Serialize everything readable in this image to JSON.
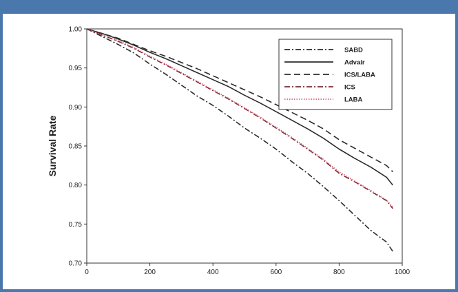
{
  "chart_data": {
    "type": "line",
    "title": "",
    "xlabel": "",
    "ylabel": "Survival Rate",
    "xlim": [
      0,
      1000
    ],
    "ylim": [
      0.7,
      1.0
    ],
    "x_ticks": [
      "0",
      "200",
      "400",
      "600",
      "800",
      "1000"
    ],
    "y_ticks": [
      "0.70",
      "0.75",
      "0.80",
      "0.85",
      "0.90",
      "0.95",
      "1.00"
    ],
    "grid": false,
    "legend_position": "top-right",
    "series": [
      {
        "name": "SABD",
        "style": "dash-dot",
        "color": "#2b2b2b",
        "x": [
          0,
          50,
          100,
          150,
          200,
          250,
          300,
          350,
          400,
          450,
          500,
          550,
          600,
          650,
          700,
          750,
          800,
          850,
          900,
          950,
          970
        ],
        "values": [
          1.0,
          0.99,
          0.98,
          0.969,
          0.955,
          0.942,
          0.928,
          0.914,
          0.902,
          0.888,
          0.873,
          0.86,
          0.846,
          0.83,
          0.815,
          0.798,
          0.78,
          0.761,
          0.742,
          0.727,
          0.715
        ]
      },
      {
        "name": "Advair",
        "style": "solid",
        "color": "#2b2b2b",
        "x": [
          0,
          50,
          100,
          150,
          200,
          250,
          300,
          350,
          400,
          450,
          500,
          550,
          600,
          650,
          700,
          750,
          800,
          850,
          900,
          950,
          970
        ],
        "values": [
          1.0,
          0.994,
          0.987,
          0.979,
          0.97,
          0.962,
          0.953,
          0.944,
          0.935,
          0.926,
          0.915,
          0.905,
          0.894,
          0.883,
          0.872,
          0.86,
          0.846,
          0.834,
          0.823,
          0.81,
          0.8
        ]
      },
      {
        "name": "ICS/LABA",
        "style": "dash",
        "color": "#2b2b2b",
        "x": [
          0,
          50,
          100,
          150,
          200,
          250,
          300,
          350,
          400,
          450,
          500,
          550,
          600,
          650,
          700,
          750,
          800,
          850,
          900,
          950,
          970
        ],
        "values": [
          1.0,
          0.994,
          0.988,
          0.98,
          0.972,
          0.965,
          0.957,
          0.949,
          0.94,
          0.931,
          0.922,
          0.913,
          0.903,
          0.893,
          0.883,
          0.872,
          0.858,
          0.847,
          0.836,
          0.825,
          0.817
        ]
      },
      {
        "name": "ICS",
        "style": "dash-dot",
        "color": "#7a2a33",
        "x": [
          0,
          50,
          100,
          150,
          200,
          250,
          300,
          350,
          400,
          450,
          500,
          550,
          600,
          650,
          700,
          750,
          800,
          850,
          900,
          950,
          970
        ],
        "values": [
          1.0,
          0.992,
          0.984,
          0.975,
          0.964,
          0.954,
          0.943,
          0.932,
          0.921,
          0.91,
          0.898,
          0.886,
          0.873,
          0.86,
          0.846,
          0.832,
          0.815,
          0.804,
          0.792,
          0.78,
          0.77
        ]
      },
      {
        "name": "LABA",
        "style": "dotted",
        "color": "#d9607a",
        "x": [
          0,
          50,
          100,
          150,
          200,
          250,
          300,
          350,
          400,
          450,
          500,
          550,
          600,
          650,
          700,
          750,
          800,
          850,
          900,
          950,
          970
        ],
        "values": [
          1.0,
          0.992,
          0.985,
          0.976,
          0.965,
          0.955,
          0.944,
          0.933,
          0.922,
          0.911,
          0.899,
          0.887,
          0.874,
          0.861,
          0.847,
          0.833,
          0.817,
          0.805,
          0.793,
          0.781,
          0.772
        ]
      }
    ]
  }
}
